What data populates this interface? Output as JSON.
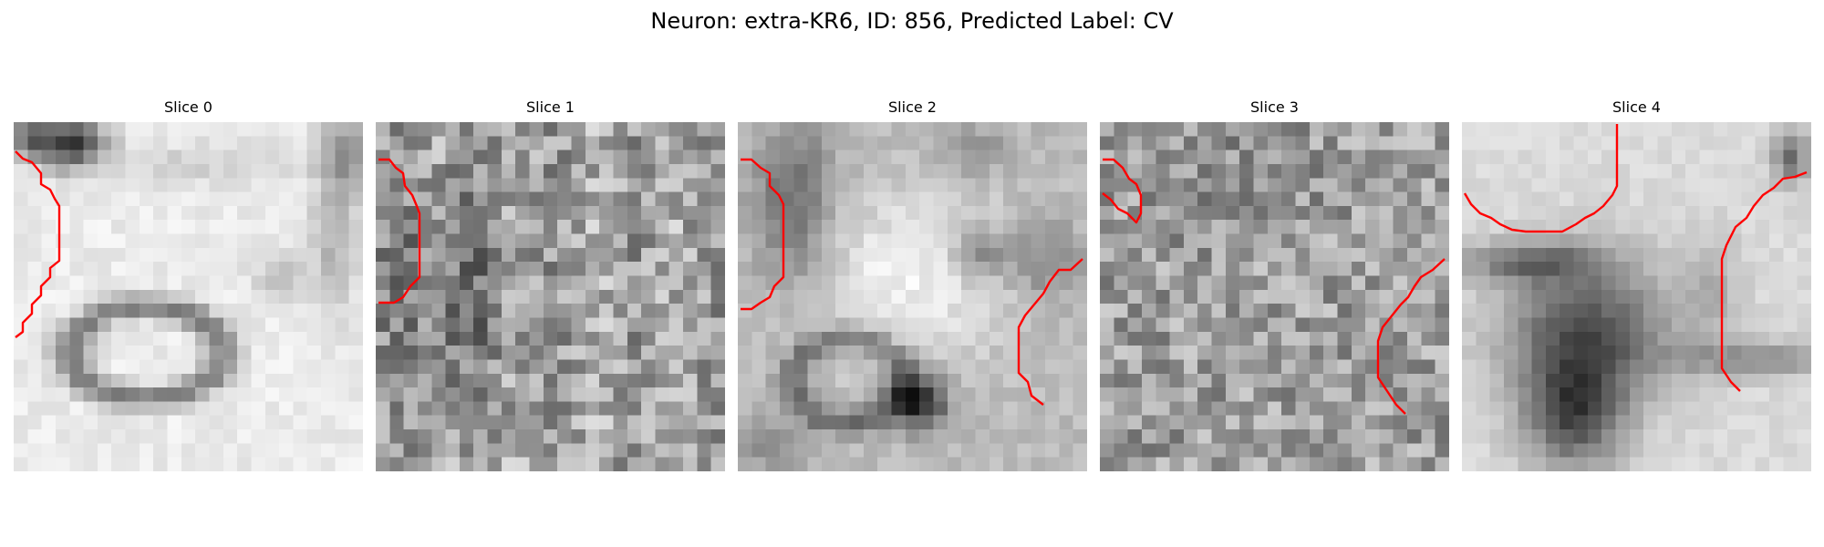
{
  "figure": {
    "title": "Neuron: extra-KR6, ID: 856, Predicted Label: CV"
  },
  "slices": [
    {
      "label": "Slice 0"
    },
    {
      "label": "Slice 1"
    },
    {
      "label": "Slice 2"
    },
    {
      "label": "Slice 3"
    },
    {
      "label": "Slice 4"
    }
  ],
  "colors": {
    "contour": "#ff0000",
    "colormap": "grayscale"
  }
}
